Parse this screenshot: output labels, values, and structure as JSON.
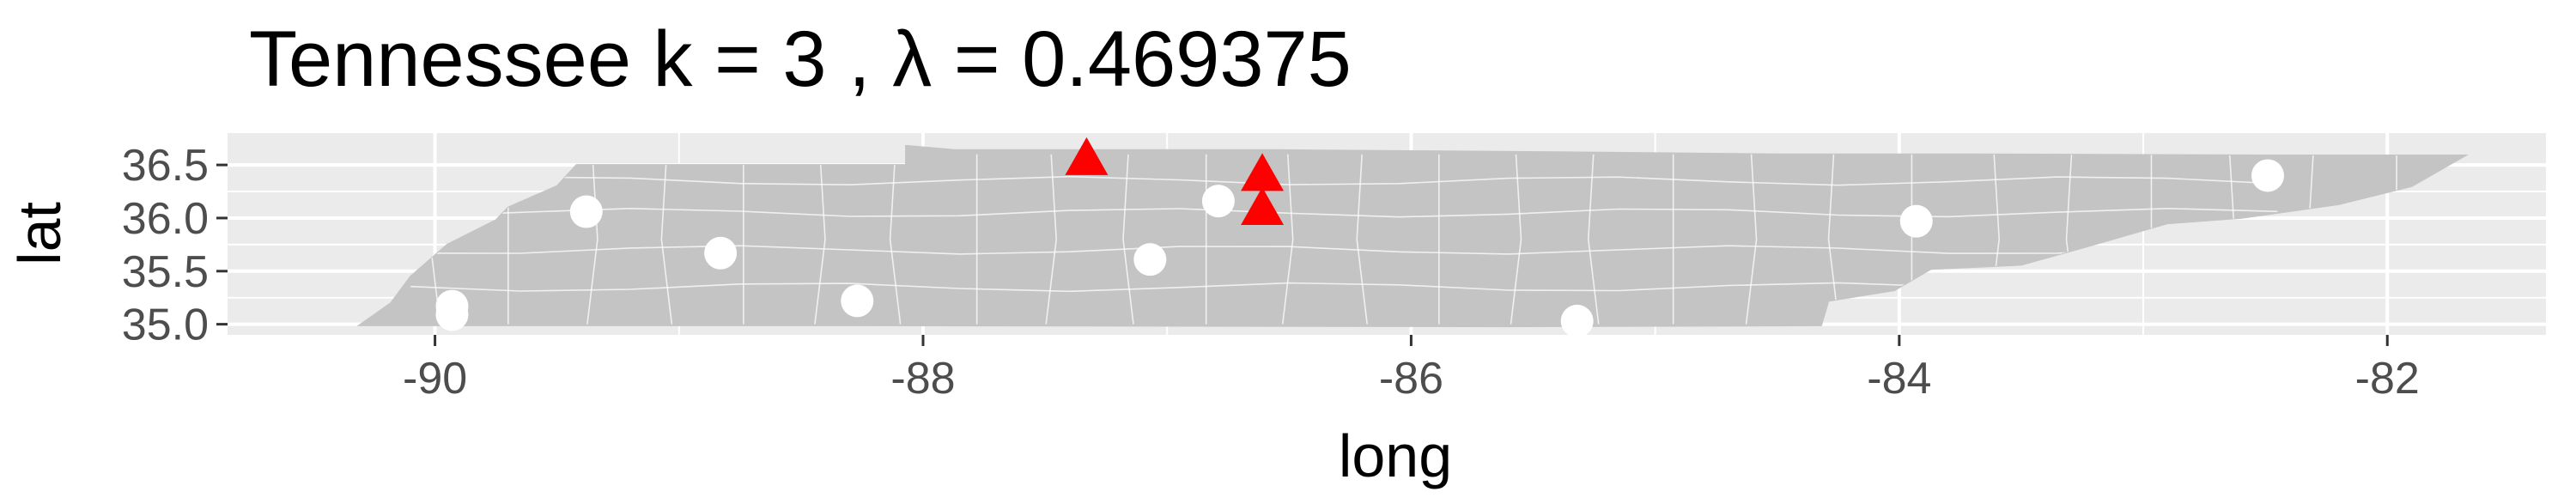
{
  "chart_data": {
    "type": "scatter",
    "title": "Tennessee  k =  3 ,  λ  =  0.469375",
    "xlabel": "long",
    "ylabel": "lat",
    "xlim": [
      -90.85,
      -81.35
    ],
    "ylim": [
      34.9,
      36.8
    ],
    "x_ticks": [
      -90,
      -88,
      -86,
      -84,
      -82
    ],
    "x_tick_labels": [
      "-90",
      "-88",
      "-86",
      "-84",
      "-82"
    ],
    "y_ticks": [
      35.0,
      35.5,
      36.0,
      36.5
    ],
    "y_tick_labels": [
      "35.0",
      "35.5",
      "36.0",
      "36.5"
    ],
    "grid": true,
    "legend": "none",
    "colors": {
      "panel": "#ebebeb",
      "grid": "#ffffff",
      "land": "#c4c4c4",
      "county_border": "#ffffff",
      "centers": "#ff0000",
      "points": "#ffffff"
    },
    "series": [
      {
        "marker": "triangle",
        "x": [
          -87.33,
          -86.61,
          -86.61
        ],
        "y": [
          36.54,
          36.39,
          36.07
        ]
      },
      {
        "marker": "circle",
        "x": [
          -89.93,
          -89.93,
          -89.38,
          -88.83,
          -88.27,
          -87.07,
          -86.79,
          -85.32,
          -83.93,
          -82.49
        ],
        "y": [
          35.17,
          35.09,
          36.06,
          35.67,
          35.22,
          35.61,
          36.16,
          35.03,
          35.97,
          36.4
        ]
      }
    ]
  }
}
